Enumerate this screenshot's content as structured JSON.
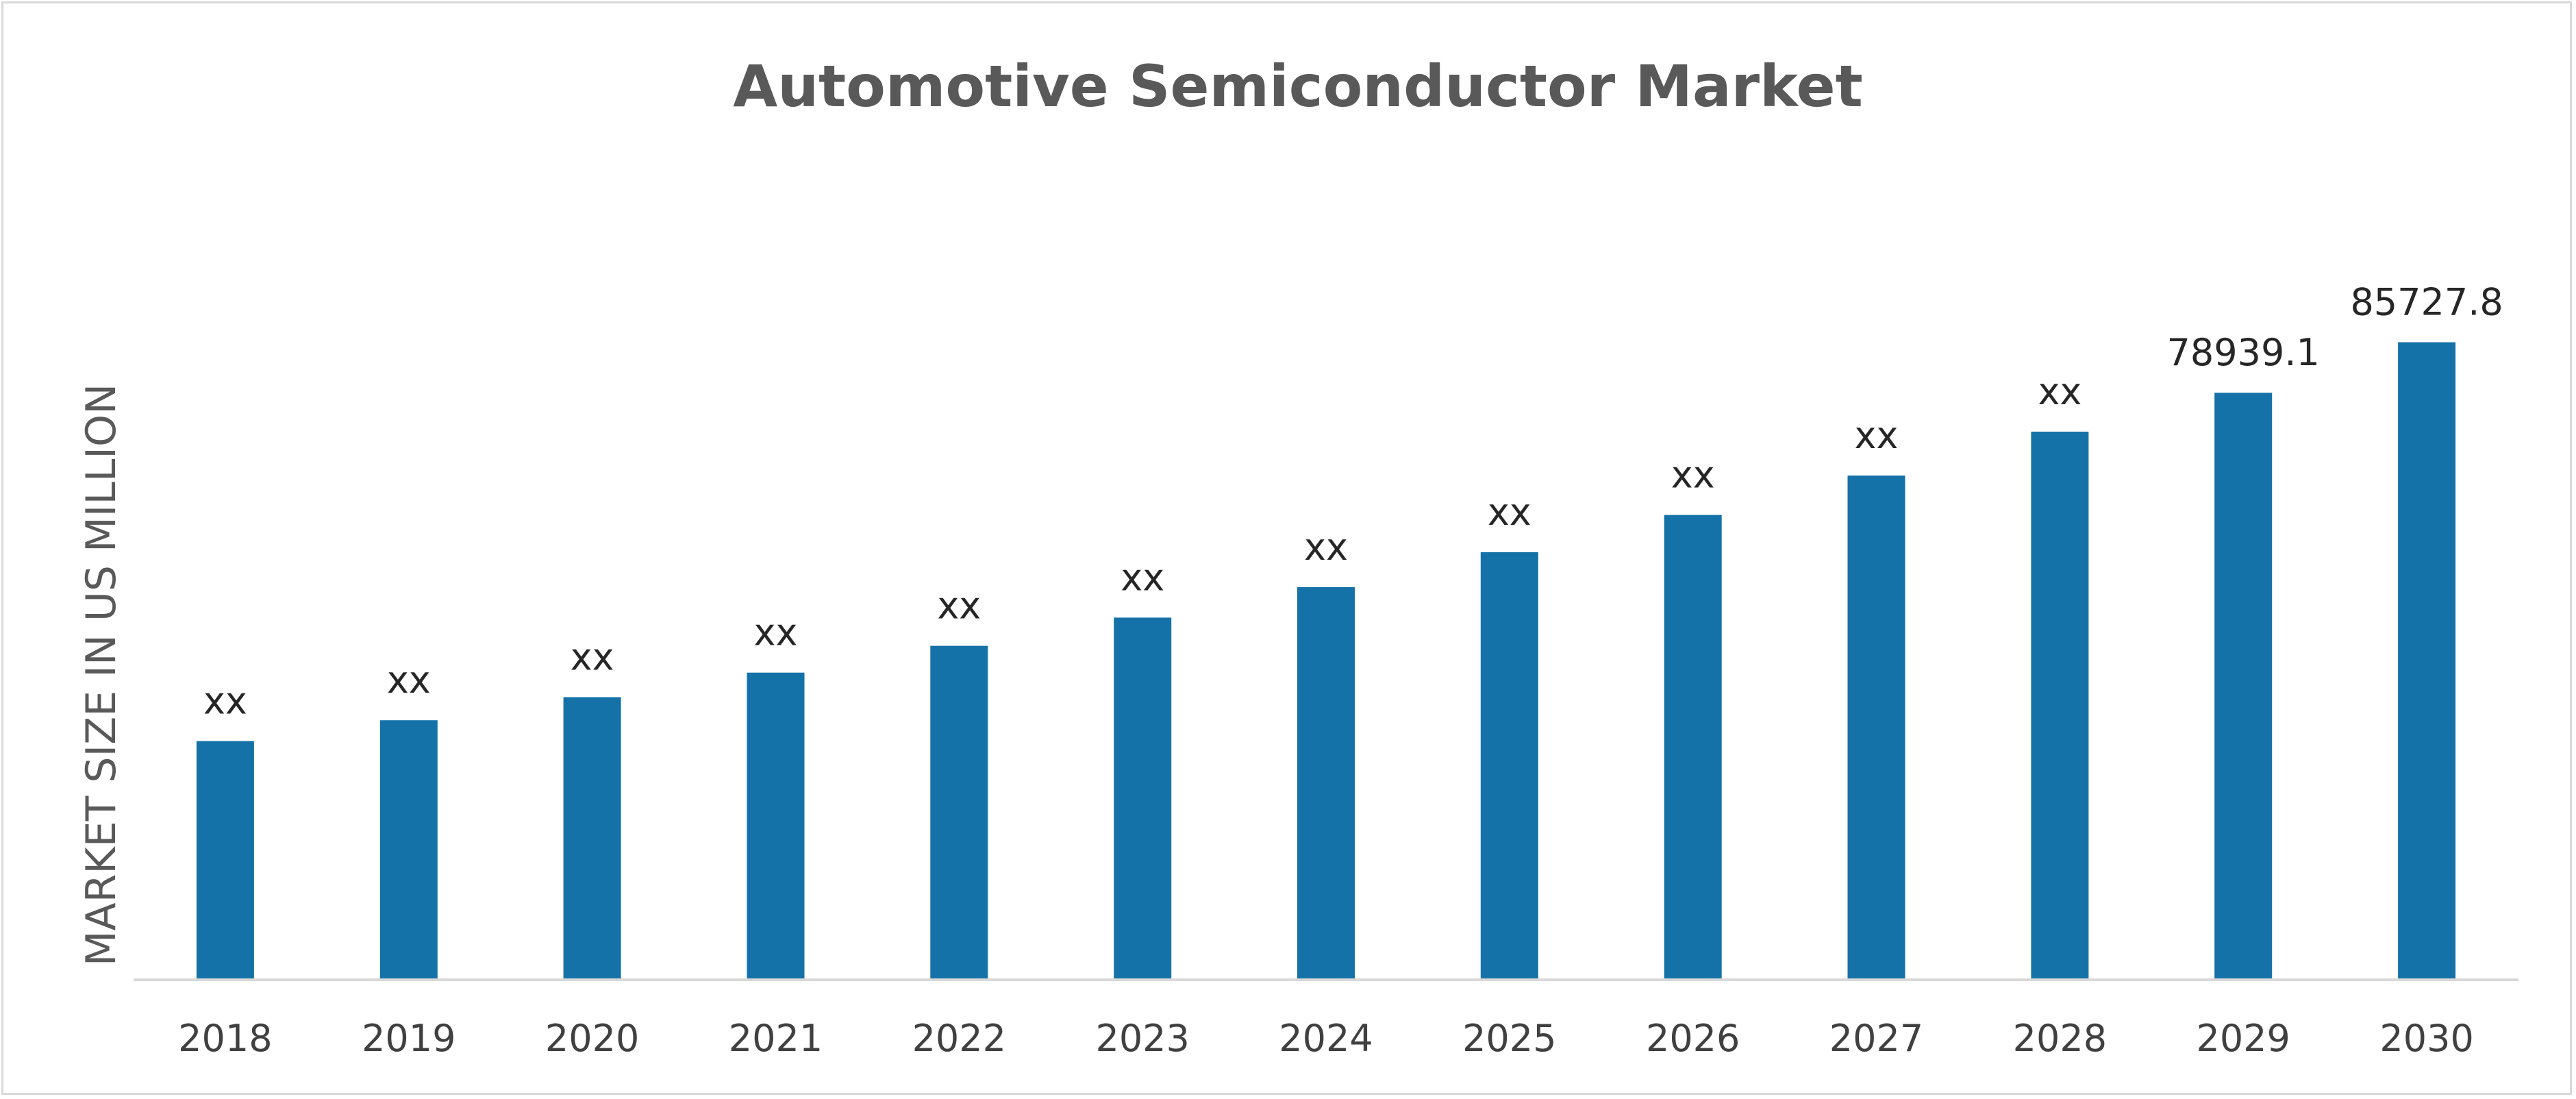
{
  "chart_data": {
    "type": "bar",
    "title": "Automotive Semiconductor Market",
    "xlabel": "",
    "ylabel": "MARKET SIZE IN US MILLION",
    "categories": [
      "2018",
      "2019",
      "2020",
      "2021",
      "2022",
      "2023",
      "2024",
      "2025",
      "2026",
      "2027",
      "2028",
      "2029",
      "2030"
    ],
    "values": [
      32100,
      34900,
      38000,
      41300,
      44900,
      48700,
      52800,
      57500,
      62500,
      67800,
      73700,
      78939.1,
      85727.8
    ],
    "data_labels": [
      "xx",
      "xx",
      "xx",
      "xx",
      "xx",
      "xx",
      "xx",
      "xx",
      "xx",
      "xx",
      "xx",
      "78939.1",
      "85727.8"
    ],
    "ylim": [
      0,
      96000
    ],
    "bar_color": "#1572a8",
    "axis_color": "#d9d9d9",
    "grid": false,
    "legend": "none"
  }
}
